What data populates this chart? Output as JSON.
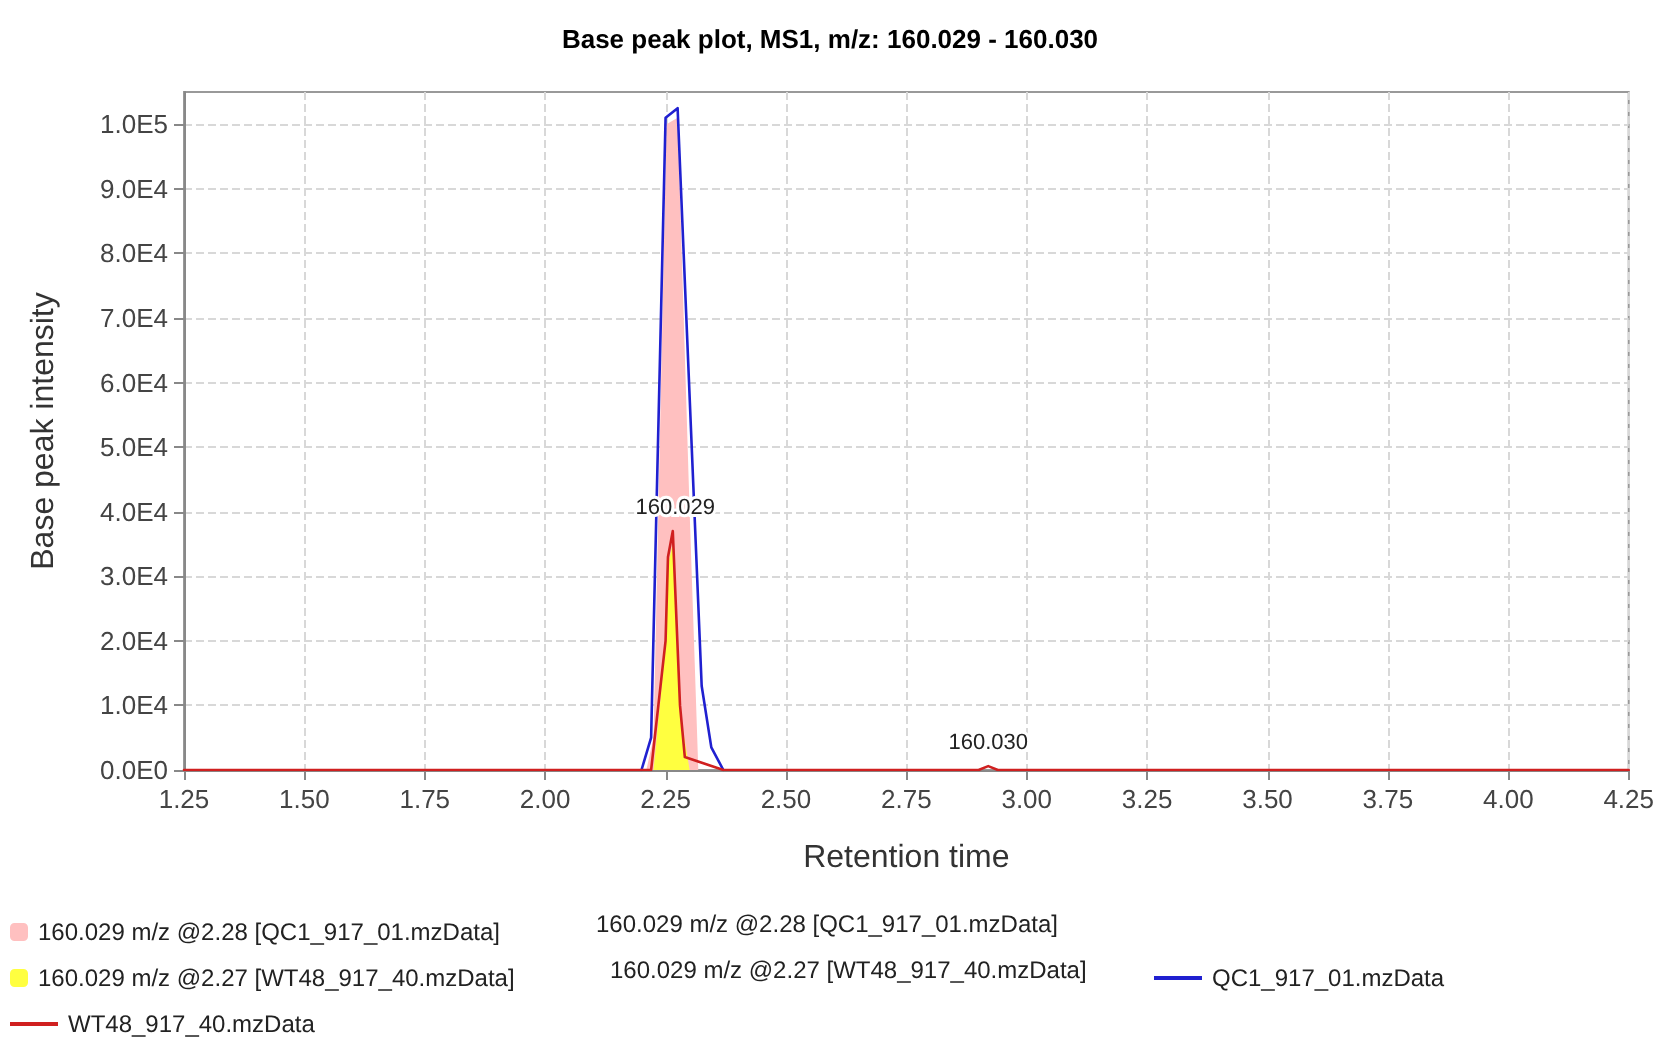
{
  "chart_data": {
    "type": "line",
    "title": "Base peak plot, MS1, m/z: 160.029 - 160.030",
    "xlabel": "Retention time",
    "ylabel": "Base peak intensity",
    "xlim": [
      1.25,
      4.25
    ],
    "xticks": [
      {
        "value": 1.25,
        "label": "1.25"
      },
      {
        "value": 1.5,
        "label": "1.50"
      },
      {
        "value": 1.75,
        "label": "1.75"
      },
      {
        "value": 2,
        "label": "2.00"
      },
      {
        "value": 2.25,
        "label": "2.25"
      },
      {
        "value": 2.5,
        "label": "2.50"
      },
      {
        "value": 2.75,
        "label": "2.75"
      },
      {
        "value": 3,
        "label": "3.00"
      },
      {
        "value": 3.25,
        "label": "3.25"
      },
      {
        "value": 3.5,
        "label": "3.50"
      },
      {
        "value": 3.75,
        "label": "3.75"
      },
      {
        "value": 4,
        "label": "4.00"
      },
      {
        "value": 4.25,
        "label": "4.25"
      }
    ],
    "ylim": [
      0,
      105000
    ],
    "yticks": [
      {
        "value": 0,
        "label": "0.0E0"
      },
      {
        "value": 10000,
        "label": "1.0E4"
      },
      {
        "value": 20000,
        "label": "2.0E4"
      },
      {
        "value": 30000,
        "label": "3.0E4"
      },
      {
        "value": 40000,
        "label": "4.0E4"
      },
      {
        "value": 50000,
        "label": "5.0E4"
      },
      {
        "value": 60000,
        "label": "6.0E4"
      },
      {
        "value": 70000,
        "label": "7.0E4"
      },
      {
        "value": 80000,
        "label": "8.0E4"
      },
      {
        "value": 90000,
        "label": "9.0E4"
      },
      {
        "value": 100000,
        "label": "1.0E5"
      }
    ],
    "grid": true,
    "legend": "bottom",
    "line_style": "solid",
    "series": [
      {
        "type": "area",
        "name": "160.029 m/z @2.28 [QC1_917_01.mzData]",
        "color": "#ffc0c0",
        "x": [
          2.21,
          2.225,
          2.252,
          2.275,
          2.3,
          2.318
        ],
        "values": [
          0,
          5000,
          100000,
          101000,
          40000,
          0
        ]
      },
      {
        "type": "area",
        "name": "160.029 m/z @2.27 [WT48_917_40.mzData]",
        "color": "#ffff40",
        "x": [
          2.225,
          2.25,
          2.256,
          2.265,
          2.28,
          2.3
        ],
        "values": [
          0,
          19000,
          32000,
          35000,
          9000,
          0
        ]
      },
      {
        "name": "QC1_917_01.mzData",
        "color": "#2020d0",
        "x": [
          2.2,
          2.22,
          2.25,
          2.275,
          2.325,
          2.345,
          2.37
        ],
        "values": [
          0,
          5000,
          101000,
          102500,
          13000,
          3500,
          0
        ]
      },
      {
        "name": "WT48_917_40.mzData",
        "color": "#d02020",
        "x": [
          1.25,
          2.22,
          2.25,
          2.255,
          2.265,
          2.28,
          2.29,
          2.33,
          2.37,
          2.9,
          2.92,
          2.94,
          4.25
        ],
        "values": [
          0,
          0,
          20000,
          33000,
          37000,
          10000,
          2000,
          1000,
          0,
          0,
          600,
          0,
          0
        ]
      }
    ],
    "annotations": [
      {
        "text": "160.029",
        "x": 2.27,
        "y": 37000
      },
      {
        "text": "160.030",
        "x": 2.92,
        "y": 600
      },
      "160.029 m/z @2.28 [QC1_917_01.mzData]",
      "160.029 m/z @2.27 [WT48_917_40.mzData]"
    ]
  }
}
